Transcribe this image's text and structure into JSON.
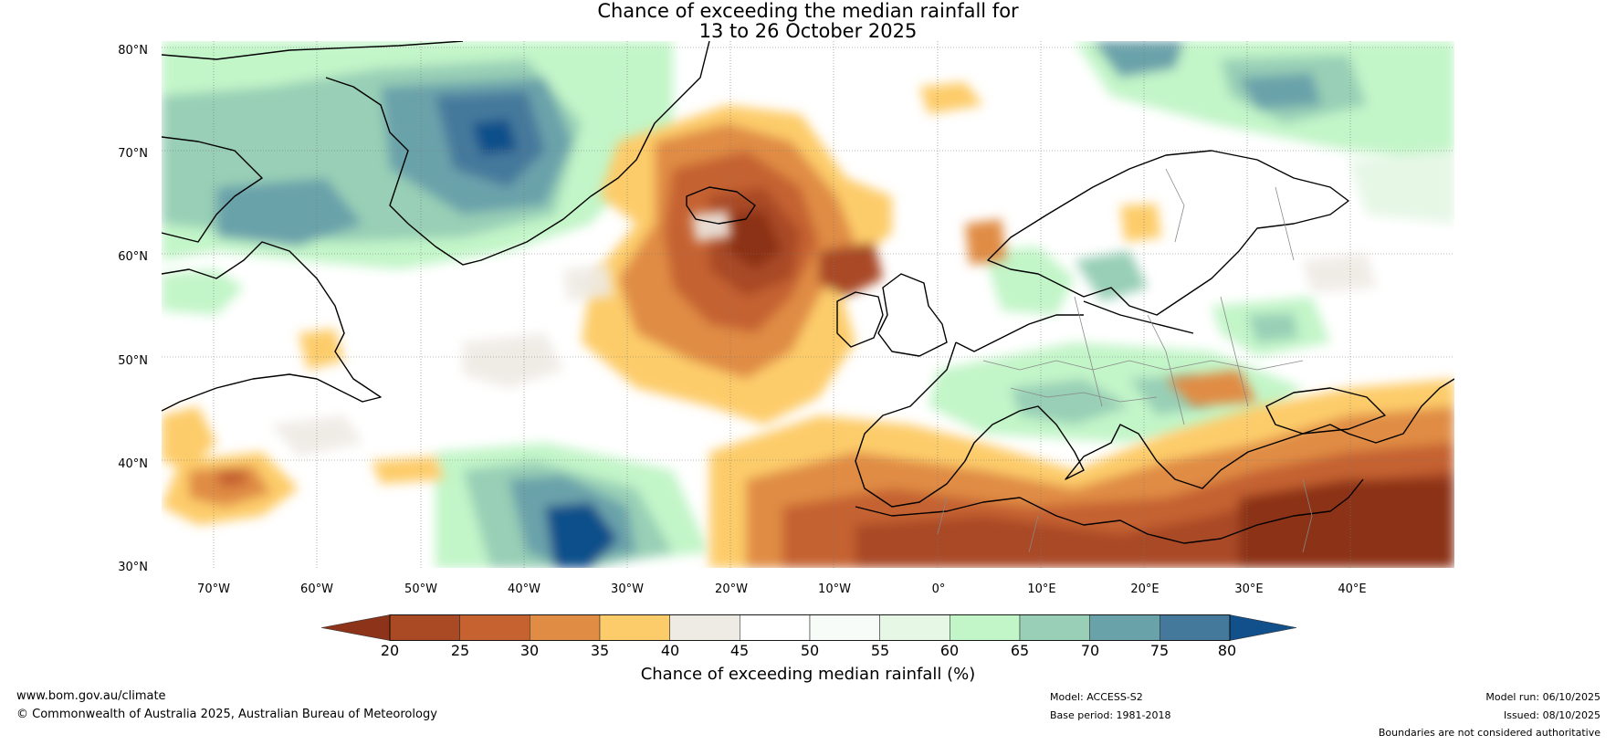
{
  "title": {
    "line1": "Chance of exceeding the median rainfall for",
    "line2": "13 to 26 October 2025"
  },
  "axes": {
    "lat_labels": [
      "80°N",
      "70°N",
      "60°N",
      "50°N",
      "40°N",
      "30°N"
    ],
    "lon_labels": [
      "70°W",
      "60°W",
      "50°W",
      "40°W",
      "30°W",
      "20°W",
      "10°W",
      "0°",
      "10°E",
      "20°E",
      "30°E",
      "40°E"
    ]
  },
  "colorbar": {
    "title": "Chance of exceeding median rainfall (%)",
    "ticks": [
      "20",
      "25",
      "30",
      "35",
      "40",
      "45",
      "50",
      "55",
      "60",
      "65",
      "70",
      "75",
      "80"
    ],
    "colors": [
      "#8c3319",
      "#a94a25",
      "#c56230",
      "#e08c44",
      "#fdcc6a",
      "#eeeae4",
      "#ffffff",
      "#f8fcf8",
      "#e6f7e6",
      "#c2f5c8",
      "#98cfb6",
      "#6aa2aa",
      "#45799c",
      "#11508a"
    ]
  },
  "footer": {
    "url": "www.bom.gov.au/climate",
    "copyright": "© Commonwealth of Australia 2025, Australian Bureau of Meteorology",
    "model": "Model: ACCESS-S2",
    "base_period": "Base period: 1981-2018",
    "model_run": "Model run: 06/10/2025",
    "issued": "Issued: 08/10/2025",
    "disclaimer": "Boundaries are not considered authoritative"
  }
}
